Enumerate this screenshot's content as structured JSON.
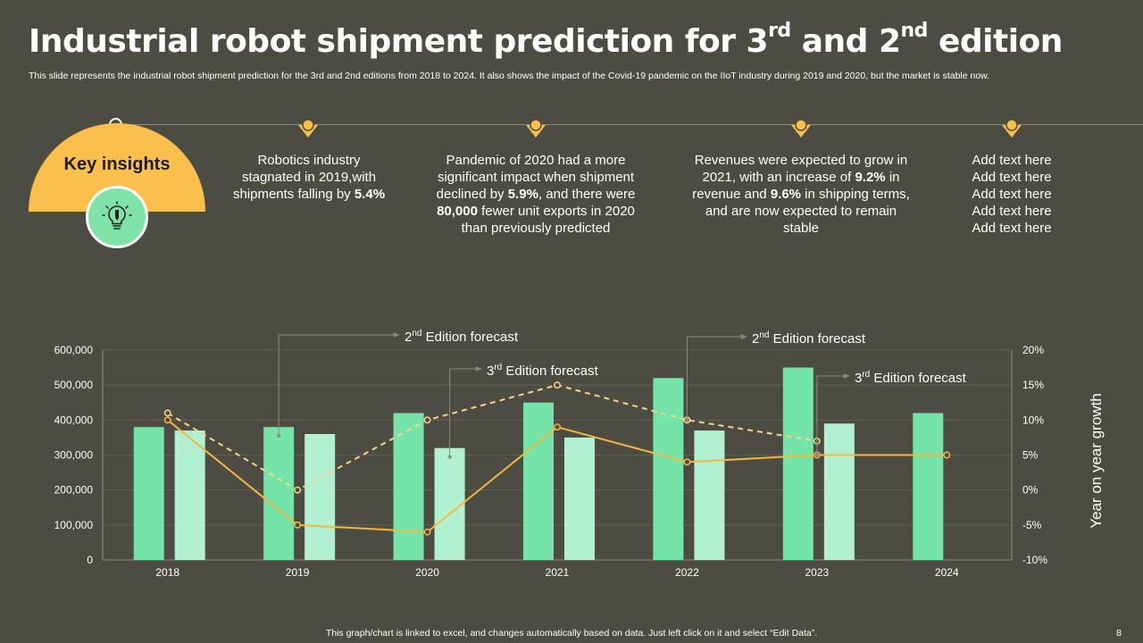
{
  "slide": {
    "title_parts": {
      "a": "Industrial robot shipment prediction for 3",
      "b": "rd",
      "c": " and 2",
      "d": "nd",
      "e": " edition"
    },
    "subtitle": "This slide represents the industrial robot shipment prediction for the 3rd and 2nd editions from 2018 to 2024. It also shows the impact of the Covid-19 pandemic on the IIoT industry during 2019 and 2020, but the market is stable now.",
    "key_insights_label": "Key insights",
    "footer": "This graph/chart is linked to excel, and changes automatically based on data. Just left click on it and select “Edit Data”.",
    "page_number": "8",
    "icon": "lightbulb-pen-icon"
  },
  "insights": [
    {
      "t1": "Robotics industry stagnated in 2019,with shipments falling by ",
      "b1": "5.4%",
      "t2": "",
      "b2": "",
      "t3": "",
      "b3": "",
      "t4": ""
    },
    {
      "t1": "Pandemic of 2020 had a more significant impact when shipment declined by ",
      "b1": "5.9%",
      "t2": ", and there were ",
      "b2": "80,000",
      "t3": " fewer unit exports in 2020 than previously predicted",
      "b3": "",
      "t4": ""
    },
    {
      "t1": "Revenues were expected to grow in 2021, with an increase of ",
      "b1": "9.2%",
      "t2": " in revenue and ",
      "b2": "9.6%",
      "t3": " in shipping terms, and are now expected to remain stable",
      "b3": "",
      "t4": ""
    },
    {
      "t1": "Add text here Add text here Add text here Add text here Add text here",
      "b1": "",
      "t2": "",
      "b2": "",
      "t3": "",
      "b3": "",
      "t4": ""
    }
  ],
  "colors": {
    "background": "#4d4c42",
    "accent_yellow": "#fbbf4c",
    "bar_3rd": "#74e4a8",
    "bar_2nd": "#b2f0d2",
    "line_3rd": "#f4b942",
    "line_2nd": "#f7d58a"
  },
  "chart_data": {
    "type": "bar",
    "categories": [
      "2018",
      "2019",
      "2020",
      "2021",
      "2022",
      "2023",
      "2024"
    ],
    "series": [
      {
        "values": [
          380000,
          380000,
          420000,
          450000,
          520000,
          550000,
          420000
        ]
      },
      {
        "values": [
          370000,
          360000,
          320000,
          350000,
          370000,
          390000,
          null
        ]
      }
    ],
    "line_series": [
      {
        "values": [
          10,
          -5,
          -6,
          9,
          4,
          5,
          5
        ]
      },
      {
        "values": [
          11,
          0,
          10,
          15,
          10,
          7,
          null
        ]
      }
    ],
    "ylim": [
      0,
      600000
    ],
    "y2lim": [
      -10,
      20
    ],
    "y_ticks": [
      "0",
      "100,000",
      "200,000",
      "300,000",
      "400,000",
      "500,000",
      "600,000"
    ],
    "y2_ticks": [
      "-10%",
      "-5%",
      "0%",
      "5%",
      "10%",
      "15%",
      "20%"
    ],
    "y2label": "Year on year growth",
    "grid": true,
    "annotations": [
      {
        "pre": "2",
        "sup": "nd",
        "post": " Edition forecast",
        "year": "2019",
        "series": "3rd",
        "kind": "bar"
      },
      {
        "pre": "3",
        "sup": "rd",
        "post": " Edition forecast",
        "year": "2020",
        "series": "2nd",
        "kind": "bar"
      },
      {
        "pre": "2",
        "sup": "nd",
        "post": " Edition forecast",
        "year": "2022",
        "series": "2nd",
        "kind": "line"
      },
      {
        "pre": "3",
        "sup": "rd",
        "post": " Edition forecast",
        "year": "2023",
        "series": "3rd",
        "kind": "line"
      }
    ]
  }
}
